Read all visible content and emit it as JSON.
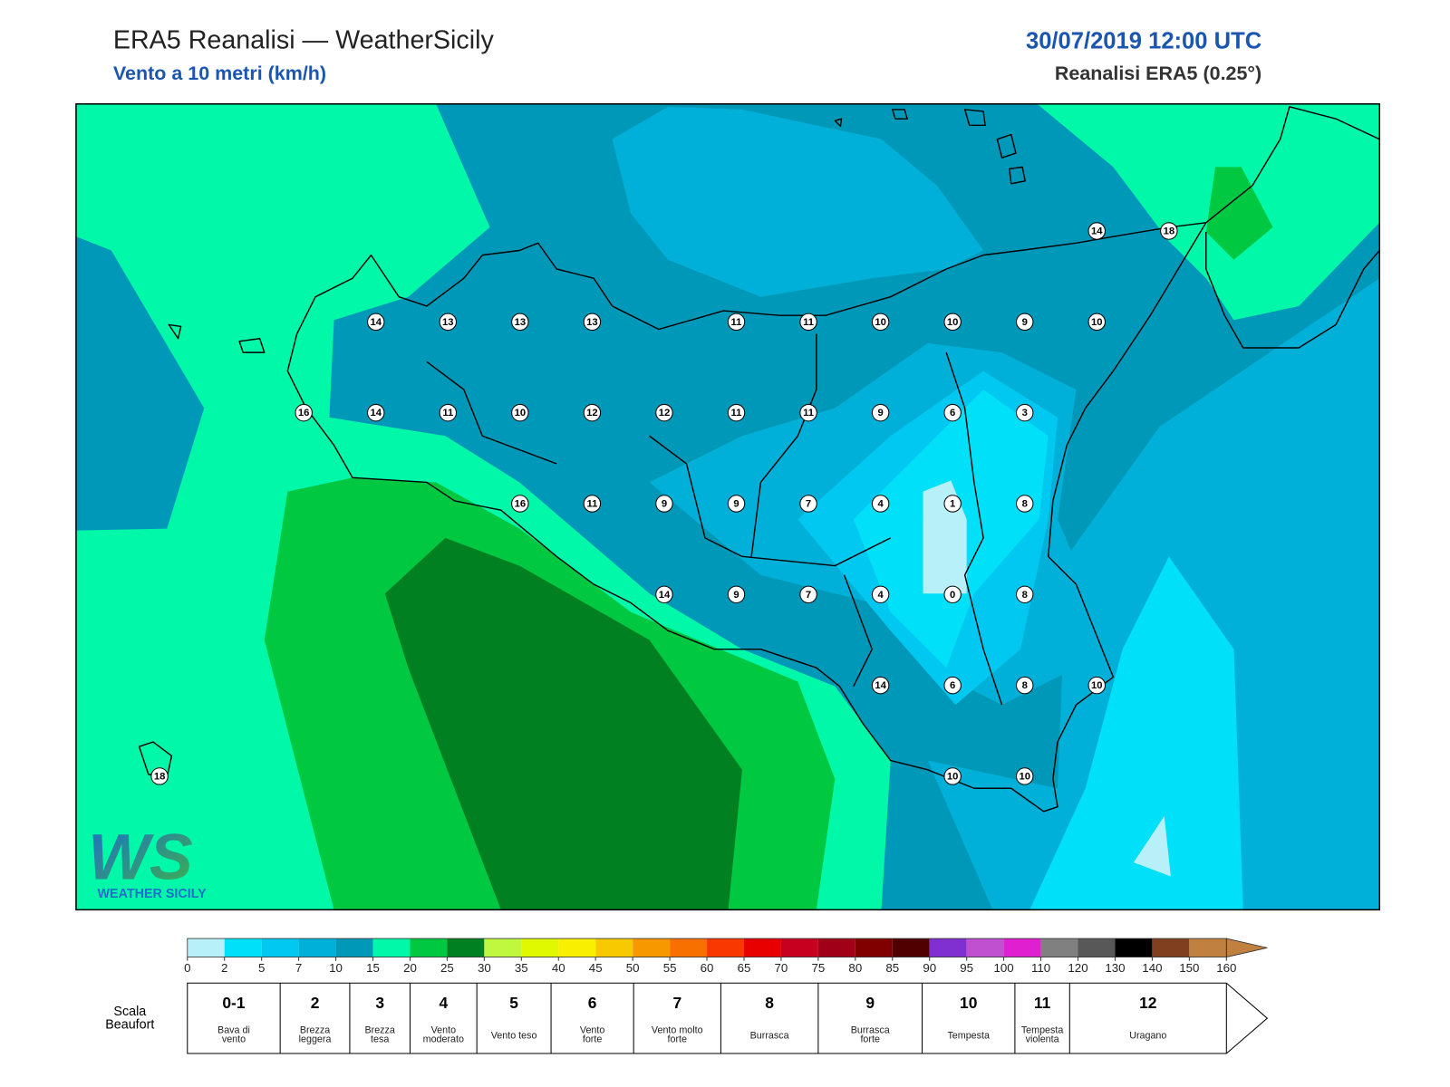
{
  "header": {
    "title": "ERA5 Reanalisi — WeatherSicily",
    "subtitle": "Vento a 10 metri (km/h)",
    "datetime": "30/07/2019 12:00 UTC",
    "model": "Reanalisi ERA5 (0.25°)"
  },
  "map": {
    "stations": [
      [
        null,
        null,
        null,
        null,
        null,
        null,
        null,
        null,
        null,
        null,
        null,
        null,
        null,
        14,
        18
      ],
      [
        null,
        null,
        null,
        14,
        13,
        13,
        13,
        null,
        11,
        11,
        10,
        10,
        9,
        10,
        null
      ],
      [
        null,
        null,
        16,
        14,
        11,
        10,
        12,
        12,
        11,
        11,
        9,
        6,
        3,
        null,
        null
      ],
      [
        null,
        null,
        null,
        null,
        null,
        16,
        11,
        9,
        9,
        7,
        4,
        1,
        8,
        null,
        null
      ],
      [
        null,
        null,
        null,
        null,
        null,
        null,
        null,
        14,
        9,
        7,
        4,
        0,
        8,
        null,
        null
      ],
      [
        null,
        null,
        null,
        null,
        null,
        null,
        null,
        null,
        null,
        null,
        14,
        6,
        8,
        10,
        null
      ],
      [
        18,
        null,
        null,
        null,
        null,
        null,
        null,
        null,
        null,
        null,
        null,
        10,
        10,
        null,
        null
      ]
    ]
  },
  "logo": {
    "mark": "WS",
    "name": "WEATHER SICILY"
  },
  "colorbar": {
    "ticks": [
      0,
      2,
      5,
      7,
      10,
      15,
      20,
      25,
      30,
      35,
      40,
      45,
      50,
      55,
      60,
      65,
      70,
      75,
      80,
      85,
      90,
      95,
      100,
      110,
      120,
      130,
      140,
      150,
      160
    ],
    "colors": [
      "#b8f0fa",
      "#00e0f8",
      "#00c8f0",
      "#00b0d8",
      "#0098b8",
      "#00f8a8",
      "#00c840",
      "#008020",
      "#c0f840",
      "#e0f800",
      "#f8f000",
      "#f8c800",
      "#f89800",
      "#f87000",
      "#f83800",
      "#e80000",
      "#c80020",
      "#a00018",
      "#800000",
      "#500000",
      "#8030d0",
      "#c050d0",
      "#e020d0",
      "#808080",
      "#585858",
      "#000000",
      "#804020",
      "#c08040"
    ]
  },
  "beaufort": {
    "title": [
      "Scala",
      "Beaufort"
    ],
    "classes": [
      {
        "force": "0-1",
        "desc": [
          "Bava di",
          "vento"
        ]
      },
      {
        "force": "2",
        "desc": [
          "Brezza",
          "leggera"
        ]
      },
      {
        "force": "3",
        "desc": [
          "Brezza",
          "tesa"
        ]
      },
      {
        "force": "4",
        "desc": [
          "Vento",
          "moderato"
        ]
      },
      {
        "force": "5",
        "desc": [
          "Vento teso"
        ]
      },
      {
        "force": "6",
        "desc": [
          "Vento",
          "forte"
        ]
      },
      {
        "force": "7",
        "desc": [
          "Vento molto",
          "forte"
        ]
      },
      {
        "force": "8",
        "desc": [
          "Burrasca"
        ]
      },
      {
        "force": "9",
        "desc": [
          "Burrasca",
          "forte"
        ]
      },
      {
        "force": "10",
        "desc": [
          "Tempesta"
        ]
      },
      {
        "force": "11",
        "desc": [
          "Tempesta",
          "violenta"
        ]
      },
      {
        "force": "12",
        "desc": [
          "Uragano"
        ]
      }
    ]
  }
}
